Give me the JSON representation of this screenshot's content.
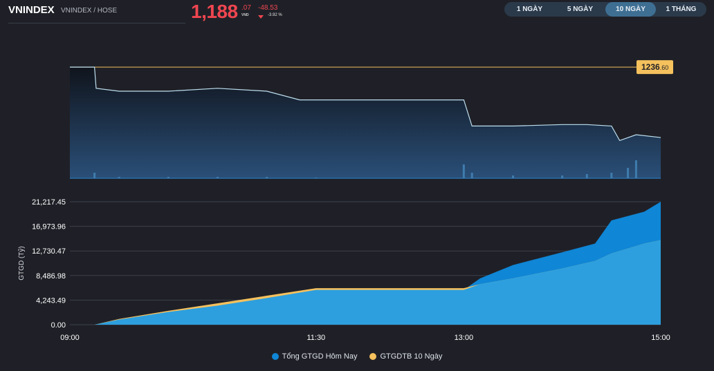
{
  "header": {
    "symbol": "VNINDEX",
    "exchange": "VNINDEX / HOSE",
    "price_main": "1,188",
    "price_decimal": ".07",
    "price_unit": "VND",
    "change": "-48.53",
    "change_pct": "-3.92 %",
    "accent_down": "#ef4650"
  },
  "ranges": {
    "items": [
      "1 NGÀY",
      "5 NGÀY",
      "10 NGÀY",
      "1 THÁNG"
    ],
    "active": "10 NGÀY"
  },
  "chart_data": [
    {
      "type": "line",
      "reference_label_main": "1236",
      "reference_label_dec": ".60",
      "reference_value": 1236.6,
      "ylim": [
        1160,
        1240
      ],
      "x": [
        "09:00",
        "09:15",
        "09:16",
        "09:30",
        "10:00",
        "10:30",
        "11:00",
        "11:20",
        "11:30",
        "12:00",
        "13:00",
        "13:05",
        "13:30",
        "14:00",
        "14:15",
        "14:30",
        "14:35",
        "14:45",
        "15:00"
      ],
      "y": [
        1236.6,
        1236.6,
        1222,
        1220,
        1220,
        1222,
        1220,
        1214,
        1214,
        1214,
        1214,
        1196,
        1196,
        1197,
        1197,
        1196,
        1186,
        1190,
        1188.07
      ],
      "volume_x": [
        "09:15",
        "09:30",
        "10:00",
        "10:30",
        "11:00",
        "11:30",
        "13:00",
        "13:05",
        "13:30",
        "14:00",
        "14:15",
        "14:30",
        "14:40",
        "14:45"
      ],
      "volume_y": [
        8,
        2,
        2,
        2,
        2,
        1,
        20,
        8,
        4,
        4,
        6,
        8,
        15,
        26
      ],
      "colors": {
        "line": "#bfe0f0",
        "reference": "#f4c15d",
        "label_bg": "#f4c15d"
      }
    },
    {
      "type": "area",
      "ylabel": "GTGD (Tỷ)",
      "yticks": [
        "21,217.45",
        "16,973.96",
        "12,730.47",
        "8,486.98",
        "4,243.49",
        "0.00"
      ],
      "ytick_values": [
        21217.45,
        16973.96,
        12730.47,
        8486.98,
        4243.49,
        0
      ],
      "xticks": [
        "09:00",
        "11:30",
        "13:00",
        "15:00"
      ],
      "ylim": [
        0,
        21217.45
      ],
      "x": [
        "09:00",
        "09:15",
        "09:30",
        "10:00",
        "10:30",
        "11:00",
        "11:30",
        "12:00",
        "13:00",
        "13:10",
        "13:30",
        "14:00",
        "14:20",
        "14:30",
        "14:50",
        "15:00"
      ],
      "series": [
        {
          "name": "Tổng GTGD Hôm Nay",
          "color": "#0f86d6",
          "values": [
            0,
            0,
            900,
            2200,
            3300,
            4600,
            6000,
            6000,
            6000,
            8000,
            10300,
            12500,
            14000,
            18000,
            19500,
            21217
          ]
        },
        {
          "name": "GTGDTB 10 Ngày",
          "color": "#f7c15d",
          "values": [
            0,
            0,
            1000,
            2400,
            3700,
            5000,
            6300,
            6300,
            6300,
            7000,
            8000,
            9700,
            11000,
            12300,
            14000,
            14600
          ]
        }
      ],
      "base_color": "#2d9fde"
    }
  ]
}
